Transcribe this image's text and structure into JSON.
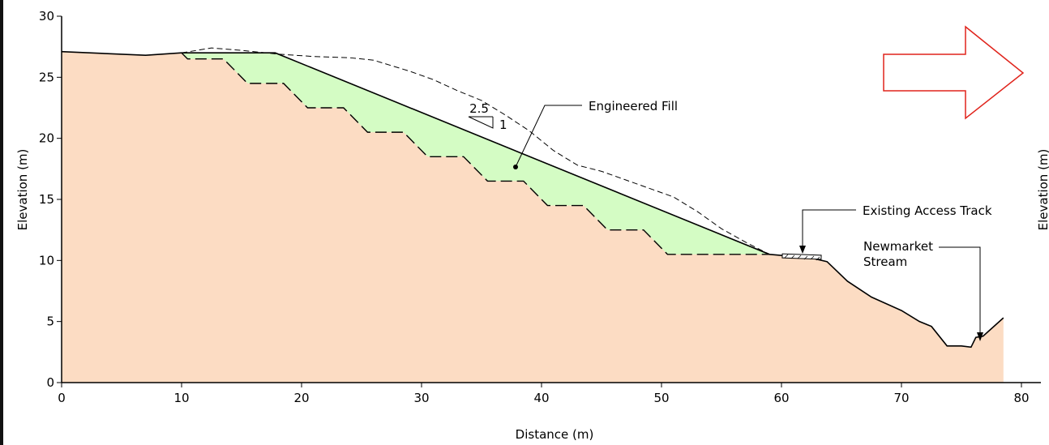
{
  "chart_data": {
    "type": "area",
    "xlabel": "Distance (m)",
    "ylabel": "Elevation (m)",
    "xlim": [
      0,
      80
    ],
    "ylim": [
      0,
      30
    ],
    "x_ticks": [
      "0",
      "10",
      "20",
      "30",
      "40",
      "50",
      "60",
      "70",
      "80"
    ],
    "y_ticks": [
      "0",
      "5",
      "10",
      "15",
      "20",
      "25",
      "30"
    ],
    "grid": false,
    "series": [
      {
        "role": "ground",
        "points": [
          [
            0,
            27.1
          ],
          [
            7,
            26.8
          ],
          [
            10,
            27.0
          ],
          [
            17.8,
            27.0
          ],
          [
            59,
            10.5
          ],
          [
            62.5,
            10.2
          ],
          [
            63.8,
            9.9
          ],
          [
            65.5,
            8.3
          ],
          [
            67.5,
            7.0
          ],
          [
            70,
            5.9
          ],
          [
            71.5,
            5.0
          ],
          [
            72.5,
            4.6
          ],
          [
            73.8,
            3.0
          ],
          [
            75,
            3.0
          ],
          [
            75.8,
            2.9
          ],
          [
            76.2,
            3.7
          ],
          [
            76.8,
            3.8
          ],
          [
            78.5,
            5.3
          ]
        ]
      },
      {
        "role": "original-ground",
        "points": [
          [
            10,
            27.0
          ],
          [
            12.5,
            27.4
          ],
          [
            15,
            27.2
          ],
          [
            18,
            26.9
          ],
          [
            21,
            26.7
          ],
          [
            24,
            26.6
          ],
          [
            26,
            26.4
          ],
          [
            29,
            25.5
          ],
          [
            31,
            24.8
          ],
          [
            33,
            23.9
          ],
          [
            35,
            23.1
          ],
          [
            37,
            21.9
          ],
          [
            39,
            20.6
          ],
          [
            41,
            19.0
          ],
          [
            43,
            17.8
          ],
          [
            45,
            17.3
          ],
          [
            47,
            16.6
          ],
          [
            49,
            15.9
          ],
          [
            51,
            15.2
          ],
          [
            53,
            14.0
          ],
          [
            55,
            12.6
          ],
          [
            57,
            11.5
          ],
          [
            59,
            10.5
          ]
        ]
      },
      {
        "role": "benched-excavation",
        "points": [
          [
            10,
            27.0
          ],
          [
            10.5,
            26.5
          ],
          [
            13.5,
            26.5
          ],
          [
            15.5,
            24.5
          ],
          [
            18.5,
            24.5
          ],
          [
            20.5,
            22.5
          ],
          [
            23.5,
            22.5
          ],
          [
            25.5,
            20.5
          ],
          [
            28.5,
            20.5
          ],
          [
            30.5,
            18.5
          ],
          [
            33.5,
            18.5
          ],
          [
            35.5,
            16.5
          ],
          [
            38.5,
            16.5
          ],
          [
            40.5,
            14.5
          ],
          [
            43.5,
            14.5
          ],
          [
            45.5,
            12.5
          ],
          [
            48.5,
            12.5
          ],
          [
            50.5,
            10.5
          ],
          [
            59,
            10.5
          ]
        ]
      }
    ],
    "slope_ratio": {
      "horizontal": "2.5",
      "vertical": "1"
    },
    "annotations": [
      {
        "text": "Engineered Fill",
        "point": [
          37,
          17.6
        ]
      },
      {
        "text": "Existing Access Track",
        "point": [
          60.5,
          10.6
        ]
      },
      {
        "text": "Newmarket\nStream",
        "point": [
          75.2,
          3.6
        ]
      }
    ]
  },
  "labels": {
    "xlabel": "Distance (m)",
    "ylabel": "Elevation (m)",
    "ylabel_right": "Elevation (m)",
    "fill_label": "Engineered Fill",
    "track_label": "Existing Access Track",
    "stream_label_1": "Newmarket",
    "stream_label_2": "Stream",
    "slope_h": "2.5",
    "slope_v": "1"
  },
  "colors": {
    "ground": "#fcdcc3",
    "fill": "#d4fcc4",
    "arrow": "#e0241c",
    "line": "#000000"
  },
  "icons": {
    "direction_arrow": "right-arrow-outline-icon"
  }
}
